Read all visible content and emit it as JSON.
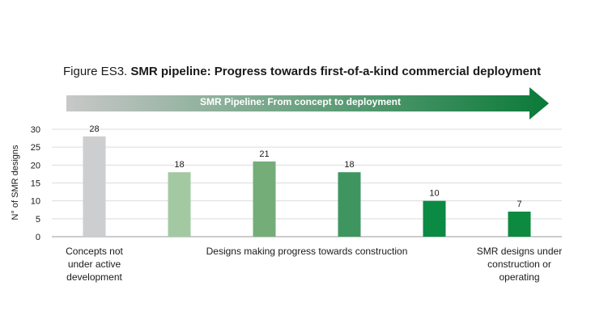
{
  "figure": {
    "prefix": "Figure ES3.",
    "title": "SMR pipeline: Progress towards first-of-a-kind commercial deployment"
  },
  "arrow": {
    "label": "SMR Pipeline: From concept to deployment",
    "gradient_start": "#c8c8c8",
    "gradient_end": "#0a7a38"
  },
  "chart_data": {
    "type": "bar",
    "ylabel": "N° of SMR designs",
    "ylim": [
      0,
      30
    ],
    "yticks": [
      0,
      5,
      10,
      15,
      20,
      25,
      30
    ],
    "grid": true,
    "values": [
      28,
      18,
      21,
      18,
      10,
      7
    ],
    "colors": [
      "#cdcecf",
      "#a3c9a2",
      "#74ad78",
      "#3f9560",
      "#0a8a43",
      "#0d8a3f"
    ],
    "group_labels": [
      {
        "lines": [
          "Concepts not",
          "under active",
          "development"
        ]
      },
      {
        "lines": [
          "Designs making progress towards construction"
        ]
      },
      {
        "lines": [
          "SMR designs under",
          "construction or",
          "operating"
        ]
      }
    ]
  }
}
